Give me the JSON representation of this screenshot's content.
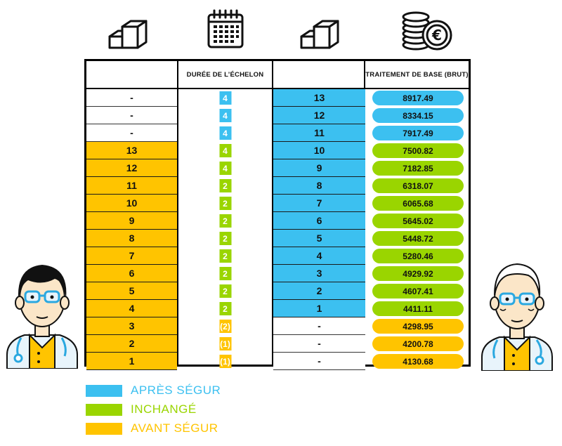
{
  "header": {
    "col1": "",
    "col2": "DURÉE DE L’ÉCHELON",
    "col3": "",
    "col4": "TRAITEMENT DE BASE (BRUT)"
  },
  "icons": [
    "stairs-icon",
    "calendar-icon",
    "stairs-icon",
    "euro-coins-icon"
  ],
  "colors": {
    "blue": "#3cc0f0",
    "green": "#9ad500",
    "orange": "#ffc400"
  },
  "rows": [
    {
      "before": "-",
      "before_color": "white",
      "duration": "4",
      "duration_color": "blue",
      "after": "13",
      "after_color": "blue",
      "salary": "8917.49",
      "salary_color": "blue"
    },
    {
      "before": "-",
      "before_color": "white",
      "duration": "4",
      "duration_color": "blue",
      "after": "12",
      "after_color": "blue",
      "salary": "8334.15",
      "salary_color": "blue"
    },
    {
      "before": "-",
      "before_color": "white",
      "duration": "4",
      "duration_color": "blue",
      "after": "11",
      "after_color": "blue",
      "salary": "7917.49",
      "salary_color": "blue"
    },
    {
      "before": "13",
      "before_color": "orange",
      "duration": "4",
      "duration_color": "green",
      "after": "10",
      "after_color": "blue",
      "salary": "7500.82",
      "salary_color": "green"
    },
    {
      "before": "12",
      "before_color": "orange",
      "duration": "4",
      "duration_color": "green",
      "after": "9",
      "after_color": "blue",
      "salary": "7182.85",
      "salary_color": "green"
    },
    {
      "before": "11",
      "before_color": "orange",
      "duration": "2",
      "duration_color": "green",
      "after": "8",
      "after_color": "blue",
      "salary": "6318.07",
      "salary_color": "green"
    },
    {
      "before": "10",
      "before_color": "orange",
      "duration": "2",
      "duration_color": "green",
      "after": "7",
      "after_color": "blue",
      "salary": "6065.68",
      "salary_color": "green"
    },
    {
      "before": "9",
      "before_color": "orange",
      "duration": "2",
      "duration_color": "green",
      "after": "6",
      "after_color": "blue",
      "salary": "5645.02",
      "salary_color": "green"
    },
    {
      "before": "8",
      "before_color": "orange",
      "duration": "2",
      "duration_color": "green",
      "after": "5",
      "after_color": "blue",
      "salary": "5448.72",
      "salary_color": "green"
    },
    {
      "before": "7",
      "before_color": "orange",
      "duration": "2",
      "duration_color": "green",
      "after": "4",
      "after_color": "blue",
      "salary": "5280.46",
      "salary_color": "green"
    },
    {
      "before": "6",
      "before_color": "orange",
      "duration": "2",
      "duration_color": "green",
      "after": "3",
      "after_color": "blue",
      "salary": "4929.92",
      "salary_color": "green"
    },
    {
      "before": "5",
      "before_color": "orange",
      "duration": "2",
      "duration_color": "green",
      "after": "2",
      "after_color": "blue",
      "salary": "4607.41",
      "salary_color": "green"
    },
    {
      "before": "4",
      "before_color": "orange",
      "duration": "2",
      "duration_color": "green",
      "after": "1",
      "after_color": "blue",
      "salary": "4411.11",
      "salary_color": "green"
    },
    {
      "before": "3",
      "before_color": "orange",
      "duration": "(2)",
      "duration_color": "orange",
      "after": "-",
      "after_color": "white",
      "salary": "4298.95",
      "salary_color": "orange"
    },
    {
      "before": "2",
      "before_color": "orange",
      "duration": "(1)",
      "duration_color": "orange",
      "after": "-",
      "after_color": "white",
      "salary": "4200.78",
      "salary_color": "orange"
    },
    {
      "before": "1",
      "before_color": "orange",
      "duration": "(1)",
      "duration_color": "orange",
      "after": "-",
      "after_color": "white",
      "salary": "4130.68",
      "salary_color": "orange"
    }
  ],
  "legend": [
    {
      "label": "APRÈS SÉGUR",
      "color": "blue"
    },
    {
      "label": "INCHANGÉ",
      "color": "green"
    },
    {
      "label": "AVANT SÉGUR",
      "color": "orange"
    }
  ]
}
